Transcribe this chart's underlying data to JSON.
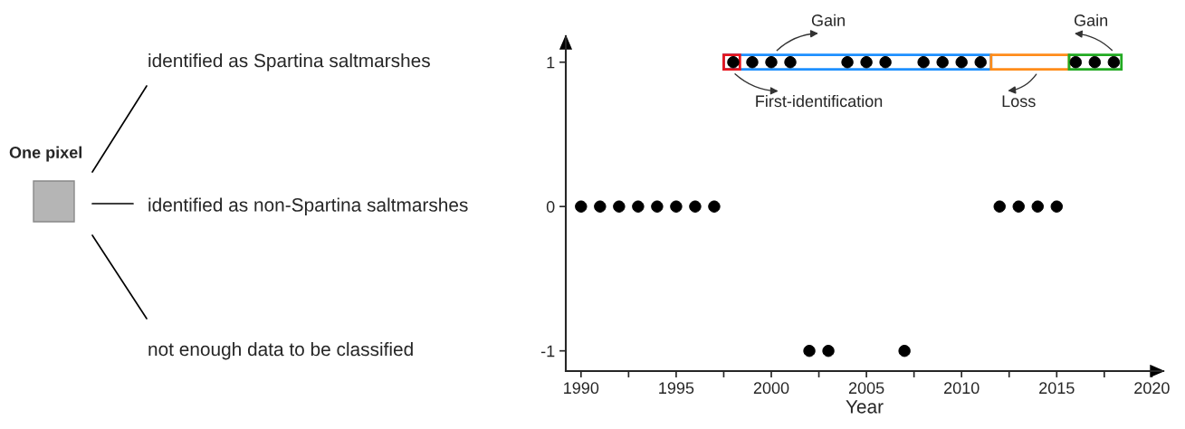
{
  "chart_data": {
    "type": "scatter",
    "xlabel": "Year",
    "x": [
      1990,
      1991,
      1992,
      1993,
      1994,
      1995,
      1996,
      1997,
      1998,
      1999,
      2000,
      2001,
      2002,
      2003,
      2004,
      2005,
      2006,
      2007,
      2008,
      2009,
      2010,
      2011,
      2012,
      2013,
      2014,
      2015,
      2016,
      2017,
      2018
    ],
    "series": [
      {
        "color": "#000000",
        "values": [
          0,
          0,
          0,
          0,
          0,
          0,
          0,
          0,
          1,
          1,
          1,
          1,
          -1,
          -1,
          1,
          1,
          1,
          -1,
          1,
          1,
          1,
          1,
          0,
          0,
          0,
          0,
          1,
          1,
          1
        ]
      }
    ],
    "marker": "circle",
    "xlim": [
      1989.2,
      2020.6
    ],
    "ylim": [
      -1.14,
      1.18
    ],
    "xticks": [
      1990,
      {
        "value": 1992.5,
        "label": null
      },
      1995,
      {
        "value": 1997.5,
        "label": null
      },
      2000,
      {
        "value": 2002.5,
        "label": null
      },
      2005,
      {
        "value": 2007.5,
        "label": null
      },
      2010,
      {
        "value": 2012.5,
        "label": null
      },
      2015,
      {
        "value": 2017.5,
        "label": null
      },
      2020
    ],
    "yticks": [
      -1,
      0,
      1
    ],
    "grid": false,
    "legend": false,
    "annotations": [
      "One pixel",
      "identified as Spartina saltmarshes",
      "identified as non-Spartina saltmarshes",
      "not enough data to be classified",
      "Gain",
      "First-identification",
      "Loss",
      "Gain"
    ]
  }
}
